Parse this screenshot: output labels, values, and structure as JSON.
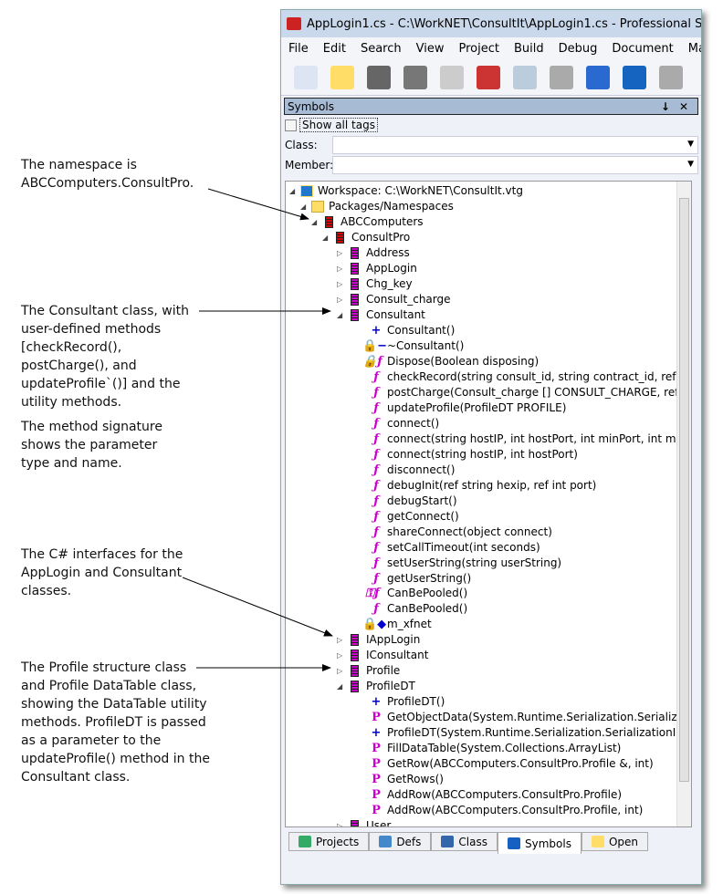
{
  "annotations": [
    {
      "text": "The namespace is ABCComputers.ConsultPro."
    },
    {
      "text": "The Consultant class, with user-defined methods [checkRecord(), postCharge(), and updateProfile`()] and the utility methods."
    },
    {
      "text": "The method signature shows the parameter type and name."
    },
    {
      "text": "The C# interfaces for the AppLogin and Consultant classes."
    },
    {
      "text": "The Profile structure class and Profile DataTable class, showing the DataTable utility methods. ProfileDT is passed as a parameter to the updateProfile() method in the Consultant class."
    }
  ],
  "window": {
    "title": "AppLogin1.cs - C:\\WorkNET\\ConsultIt\\AppLogin1.cs - Professional Series W"
  },
  "menu": [
    "File",
    "Edit",
    "Search",
    "View",
    "Project",
    "Build",
    "Debug",
    "Document",
    "Macro"
  ],
  "toolbar": [
    "new-file",
    "open-folder",
    "save",
    "save-all",
    "print",
    "cut",
    "copy",
    "paste",
    "select",
    "undo",
    "redo"
  ],
  "panel": {
    "title": "Symbols",
    "pin": "↓",
    "close": "✕",
    "show_all_tags": "Show all tags",
    "class_label": "Class:",
    "member_label": "Member:",
    "class_value": "",
    "member_value": ""
  },
  "tree": [
    {
      "l": 0,
      "t": "e",
      "i": "ws",
      "text": "Workspace: C:\\WorkNET\\ConsultIt.vtg"
    },
    {
      "l": 1,
      "t": "e",
      "i": "fold",
      "text": "Packages/Namespaces"
    },
    {
      "l": 2,
      "t": "e",
      "i": "ns",
      "text": "ABCComputers"
    },
    {
      "l": 3,
      "t": "e",
      "i": "ns",
      "text": "ConsultPro"
    },
    {
      "l": 4,
      "t": "c",
      "i": "cls",
      "text": "Address"
    },
    {
      "l": 4,
      "t": "c",
      "i": "cls",
      "text": "AppLogin"
    },
    {
      "l": 4,
      "t": "c",
      "i": "cls",
      "text": "Chg_key"
    },
    {
      "l": 4,
      "t": "c",
      "i": "cls",
      "text": "Consult_charge"
    },
    {
      "l": 4,
      "t": "e",
      "i": "cls",
      "text": "Consultant"
    },
    {
      "l": 5,
      "i": "pl",
      "text": "Consultant()"
    },
    {
      "l": 5,
      "i": "lockminus",
      "text": "~Consultant()"
    },
    {
      "l": 5,
      "i": "lockfn",
      "text": "Dispose(Boolean disposing)"
    },
    {
      "l": 5,
      "i": "fn",
      "text": "checkRecord(string consult_id, string contract_id, ref Consult_"
    },
    {
      "l": 5,
      "i": "fn",
      "text": "postCharge(Consult_charge [] CONSULT_CHARGE, ref string r"
    },
    {
      "l": 5,
      "i": "fn",
      "text": "updateProfile(ProfileDT PROFILE)"
    },
    {
      "l": 5,
      "i": "fn",
      "text": "connect()"
    },
    {
      "l": 5,
      "i": "fn",
      "text": "connect(string hostIP, int hostPort, int minPort, int maxPort)"
    },
    {
      "l": 5,
      "i": "fn",
      "text": "connect(string hostIP, int hostPort)"
    },
    {
      "l": 5,
      "i": "fn",
      "text": "disconnect()"
    },
    {
      "l": 5,
      "i": "fn",
      "text": "debugInit(ref string hexip, ref int port)"
    },
    {
      "l": 5,
      "i": "fn",
      "text": "debugStart()"
    },
    {
      "l": 5,
      "i": "fn",
      "text": "getConnect()"
    },
    {
      "l": 5,
      "i": "fn",
      "text": "shareConnect(object connect)"
    },
    {
      "l": 5,
      "i": "fn",
      "text": "setCallTimeout(int seconds)"
    },
    {
      "l": 5,
      "i": "fn",
      "text": "setUserString(string userString)"
    },
    {
      "l": 5,
      "i": "fn",
      "text": "getUserString()"
    },
    {
      "l": 5,
      "i": "keyfn",
      "text": "CanBePooled()"
    },
    {
      "l": 5,
      "i": "fn",
      "text": "CanBePooled()"
    },
    {
      "l": 5,
      "i": "lockvar",
      "text": "m_xfnet"
    },
    {
      "l": 4,
      "t": "c",
      "i": "cls",
      "text": "IAppLogin"
    },
    {
      "l": 4,
      "t": "c",
      "i": "cls",
      "text": "IConsultant"
    },
    {
      "l": 4,
      "t": "c",
      "i": "cls",
      "text": "Profile"
    },
    {
      "l": 4,
      "t": "e",
      "i": "cls",
      "text": "ProfileDT"
    },
    {
      "l": 5,
      "i": "pl",
      "text": "ProfileDT()"
    },
    {
      "l": 5,
      "i": "pp",
      "text": "GetObjectData(System.Runtime.Serialization.SerializationInfo"
    },
    {
      "l": 5,
      "i": "pl",
      "text": "ProfileDT(System.Runtime.Serialization.SerializationInfo, Syst"
    },
    {
      "l": 5,
      "i": "pp",
      "text": "FillDataTable(System.Collections.ArrayList)"
    },
    {
      "l": 5,
      "i": "pp",
      "text": "GetRow(ABCComputers.ConsultPro.Profile &, int)"
    },
    {
      "l": 5,
      "i": "pp",
      "text": "GetRows()"
    },
    {
      "l": 5,
      "i": "pp",
      "text": "AddRow(ABCComputers.ConsultPro.Profile)"
    },
    {
      "l": 5,
      "i": "pp",
      "text": "AddRow(ABCComputers.ConsultPro.Profile, int)"
    },
    {
      "l": 4,
      "t": "c",
      "i": "cls",
      "text": "User"
    }
  ],
  "tabs": [
    {
      "label": "Projects",
      "color": "#3a6"
    },
    {
      "label": "Defs",
      "color": "#48c"
    },
    {
      "label": "Class",
      "color": "#36a"
    },
    {
      "label": "Symbols",
      "color": "#1560c0",
      "active": true
    },
    {
      "label": "Open",
      "color": "#fd6"
    }
  ]
}
